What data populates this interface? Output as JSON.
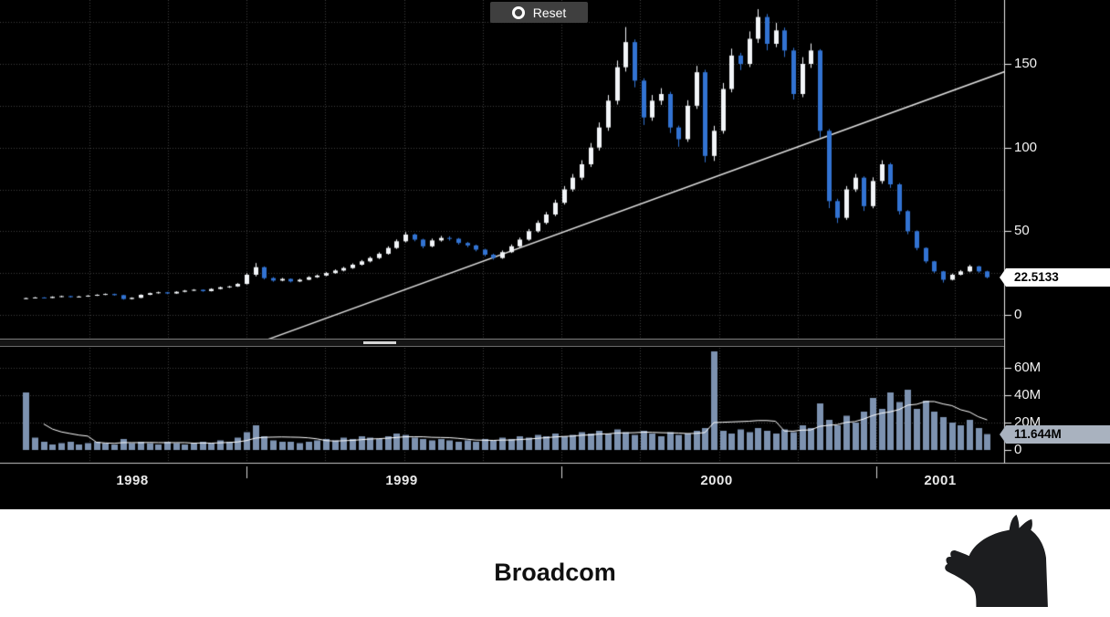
{
  "reset_button": {
    "label": "Reset",
    "icon": "target-circle-icon"
  },
  "footer": {
    "title": "Broadcom",
    "logo": "dark-horse-logo"
  },
  "colors": {
    "background": "#000000",
    "grid": "#3f3f3f",
    "up_candle": "#f2f5f8",
    "down_candle": "#3273d2",
    "volume_bar": "#7d92b0",
    "volume_ma_line": "#ffffff",
    "trendline": "#e0e0e0",
    "axis": "#eeeeee",
    "price_flag_bg": "#ffffff",
    "volume_flag_bg": "#a9b2bf",
    "reset_button_bg": "#3f3f3f"
  },
  "chart_data": {
    "type": "candlestick",
    "title": "Broadcom",
    "panes": [
      "price",
      "volume"
    ],
    "x_axis": {
      "start": 1998.3,
      "step": 0.028,
      "year_labels": [
        "1998",
        "1999",
        "2000",
        "2001"
      ],
      "year_boundary_ticks": [
        1999,
        2000,
        2001
      ],
      "quarter_gridlines": true
    },
    "price_axis": {
      "side": "right",
      "ticks": [
        {
          "label": "150",
          "value": 150
        },
        {
          "label": "100",
          "value": 100
        },
        {
          "label": "50",
          "value": 50
        },
        {
          "label": "0",
          "value": 0
        }
      ],
      "gridline_step": 25,
      "range": [
        -16,
        186
      ]
    },
    "volume_axis": {
      "side": "right",
      "unit": "M",
      "ticks": [
        {
          "label": "60M",
          "value": 60
        },
        {
          "label": "40M",
          "value": 40
        },
        {
          "label": "20M",
          "value": 20
        },
        {
          "label": "0",
          "value": 0
        }
      ],
      "range": [
        0,
        80
      ]
    },
    "last_price_label": "22.5133",
    "last_price": 22.5133,
    "last_volume_label": "11.644M",
    "last_volume_m": 11.644,
    "trendline": {
      "t1": 1999.07,
      "p1": -14.5,
      "t2": 2001.41,
      "p2": 145.5
    },
    "candles_ohlc": [
      [
        9.7,
        10.3,
        9.4,
        10.0
      ],
      [
        10.0,
        10.7,
        9.8,
        10.4
      ],
      [
        10.4,
        10.6,
        9.8,
        10.1
      ],
      [
        10.1,
        11.1,
        10.0,
        10.8
      ],
      [
        10.8,
        11.5,
        10.6,
        11.2
      ],
      [
        11.2,
        11.4,
        10.3,
        10.6
      ],
      [
        10.6,
        11.3,
        10.4,
        11.0
      ],
      [
        11.0,
        11.8,
        10.8,
        11.5
      ],
      [
        11.5,
        12.3,
        11.3,
        12.0
      ],
      [
        12.0,
        12.8,
        11.8,
        12.5
      ],
      [
        12.5,
        12.7,
        11.5,
        11.8
      ],
      [
        11.8,
        12.0,
        9.1,
        9.5
      ],
      [
        9.5,
        10.5,
        9.2,
        10.2
      ],
      [
        10.2,
        12.3,
        10.0,
        12.0
      ],
      [
        12.0,
        13.3,
        11.8,
        13.0
      ],
      [
        13.0,
        13.9,
        12.7,
        13.5
      ],
      [
        13.5,
        13.7,
        12.4,
        12.8
      ],
      [
        12.8,
        14.1,
        12.6,
        13.8
      ],
      [
        13.8,
        14.9,
        13.5,
        14.5
      ],
      [
        14.5,
        15.4,
        14.2,
        15.0
      ],
      [
        15.0,
        15.2,
        13.8,
        14.2
      ],
      [
        14.2,
        15.9,
        14.0,
        15.5
      ],
      [
        15.5,
        16.9,
        15.2,
        16.5
      ],
      [
        16.5,
        17.4,
        16.1,
        17.0
      ],
      [
        17.0,
        19.0,
        16.7,
        18.5
      ],
      [
        18.5,
        25.0,
        18.2,
        24.0
      ],
      [
        24.0,
        31.0,
        23.0,
        28.5
      ],
      [
        28.5,
        29.0,
        21.2,
        22.0
      ],
      [
        22.0,
        22.6,
        19.8,
        20.5
      ],
      [
        20.5,
        22.1,
        20.1,
        21.5
      ],
      [
        21.5,
        21.8,
        19.4,
        20.0
      ],
      [
        20.0,
        21.6,
        19.6,
        21.0
      ],
      [
        21.0,
        23.1,
        20.7,
        22.5
      ],
      [
        22.5,
        24.1,
        22.1,
        23.5
      ],
      [
        23.5,
        25.6,
        23.1,
        25.0
      ],
      [
        25.0,
        27.2,
        24.6,
        26.5
      ],
      [
        26.5,
        28.7,
        26.0,
        28.0
      ],
      [
        28.0,
        30.8,
        27.5,
        30.0
      ],
      [
        30.0,
        32.8,
        29.5,
        32.0
      ],
      [
        32.0,
        34.8,
        31.4,
        34.0
      ],
      [
        34.0,
        37.4,
        33.4,
        36.5
      ],
      [
        36.5,
        41.0,
        36.0,
        40.0
      ],
      [
        40.0,
        45.1,
        39.4,
        44.0
      ],
      [
        44.0,
        49.5,
        43.3,
        48.0
      ],
      [
        48.0,
        48.6,
        44.0,
        45.0
      ],
      [
        45.0,
        45.5,
        39.8,
        41.0
      ],
      [
        41.0,
        45.6,
        40.4,
        44.5
      ],
      [
        44.5,
        47.2,
        43.8,
        46.0
      ],
      [
        46.0,
        47.0,
        44.4,
        45.5
      ],
      [
        45.5,
        46.0,
        42.0,
        43.0
      ],
      [
        43.0,
        43.6,
        40.4,
        41.5
      ],
      [
        41.5,
        42.0,
        38.0,
        39.0
      ],
      [
        39.0,
        39.5,
        35.0,
        36.0
      ],
      [
        36.0,
        36.6,
        33.0,
        34.0
      ],
      [
        34.0,
        38.5,
        33.5,
        37.5
      ],
      [
        37.5,
        42.1,
        37.0,
        41.0
      ],
      [
        41.0,
        46.2,
        40.4,
        45.0
      ],
      [
        45.0,
        51.3,
        44.3,
        50.0
      ],
      [
        50.0,
        56.4,
        49.2,
        55.0
      ],
      [
        55.0,
        61.5,
        54.1,
        60.0
      ],
      [
        60.0,
        68.8,
        59.0,
        67.0
      ],
      [
        67.0,
        77.0,
        65.9,
        75.0
      ],
      [
        75.0,
        84.2,
        73.7,
        82.0
      ],
      [
        82.0,
        92.4,
        80.6,
        90.0
      ],
      [
        90.0,
        102.7,
        88.4,
        100.0
      ],
      [
        100.0,
        115.0,
        98.2,
        112.0
      ],
      [
        112.0,
        131.4,
        110.0,
        128.0
      ],
      [
        128.0,
        152.0,
        125.7,
        148.0
      ],
      [
        148.0,
        172.0,
        145.4,
        163.0
      ],
      [
        163.0,
        164.6,
        136.0,
        140.0
      ],
      [
        140.0,
        141.4,
        113.5,
        118.0
      ],
      [
        118.0,
        131.4,
        116.0,
        128.0
      ],
      [
        128.0,
        135.5,
        125.5,
        132.0
      ],
      [
        132.0,
        133.3,
        108.7,
        112.0
      ],
      [
        112.0,
        113.1,
        100.5,
        105.0
      ],
      [
        105.0,
        128.3,
        103.4,
        125.0
      ],
      [
        125.0,
        148.8,
        123.1,
        145.0
      ],
      [
        145.0,
        146.5,
        91.2,
        95.0
      ],
      [
        95.0,
        113.0,
        92.0,
        110.0
      ],
      [
        110.0,
        138.6,
        108.3,
        135.0
      ],
      [
        135.0,
        159.1,
        133.0,
        155.0
      ],
      [
        155.0,
        156.6,
        146.3,
        150.0
      ],
      [
        150.0,
        169.4,
        148.1,
        165.0
      ],
      [
        165.0,
        182.7,
        162.5,
        178.0
      ],
      [
        178.0,
        179.8,
        158.1,
        162.0
      ],
      [
        162.0,
        174.5,
        160.0,
        170.0
      ],
      [
        170.0,
        171.7,
        154.1,
        158.0
      ],
      [
        158.0,
        159.6,
        128.7,
        132.0
      ],
      [
        132.0,
        154.0,
        130.1,
        150.0
      ],
      [
        150.0,
        162.2,
        147.6,
        158.0
      ],
      [
        158.0,
        158.8,
        106.0,
        110.0
      ],
      [
        110.0,
        111.1,
        63.8,
        68.0
      ],
      [
        68.0,
        69.4,
        54.9,
        58.0
      ],
      [
        58.0,
        77.0,
        56.8,
        75.0
      ],
      [
        75.0,
        84.2,
        73.5,
        82.0
      ],
      [
        82.0,
        82.8,
        62.1,
        65.0
      ],
      [
        65.0,
        82.2,
        63.7,
        80.0
      ],
      [
        80.0,
        92.4,
        78.4,
        90.0
      ],
      [
        90.0,
        90.9,
        75.9,
        78.0
      ],
      [
        78.0,
        78.8,
        60.0,
        62.0
      ],
      [
        62.0,
        62.6,
        48.2,
        50.0
      ],
      [
        50.0,
        50.5,
        38.6,
        40.0
      ],
      [
        40.0,
        40.4,
        30.9,
        32.0
      ],
      [
        32.0,
        32.3,
        25.1,
        26.0
      ],
      [
        26.0,
        26.3,
        19.3,
        21.0
      ],
      [
        21.0,
        24.7,
        20.6,
        24.0
      ],
      [
        24.0,
        26.8,
        23.6,
        26.0
      ],
      [
        26.0,
        29.9,
        25.5,
        29.0
      ],
      [
        29.0,
        29.3,
        25.2,
        26.0
      ],
      [
        26.0,
        26.4,
        21.8,
        22.5
      ]
    ],
    "volumes_m": [
      42,
      9,
      6,
      4,
      5,
      6,
      4,
      5,
      6,
      5,
      4,
      8,
      5,
      6,
      5,
      4,
      6,
      5,
      4,
      5,
      6,
      5,
      7,
      6,
      9,
      13,
      18,
      10,
      7,
      6,
      6,
      5,
      6,
      7,
      8,
      7,
      9,
      8,
      10,
      9,
      8,
      10,
      12,
      11,
      9,
      8,
      7,
      8,
      7,
      6,
      7,
      6,
      8,
      7,
      9,
      8,
      10,
      9,
      11,
      10,
      12,
      10,
      11,
      13,
      12,
      14,
      12,
      15,
      13,
      11,
      14,
      12,
      10,
      13,
      11,
      12,
      14,
      16,
      72,
      14,
      12,
      15,
      13,
      16,
      14,
      12,
      15,
      13,
      18,
      16,
      34,
      22,
      18,
      25,
      20,
      28,
      38,
      30,
      42,
      35,
      44,
      30,
      36,
      28,
      24,
      20,
      18,
      22,
      16,
      11.6
    ]
  }
}
